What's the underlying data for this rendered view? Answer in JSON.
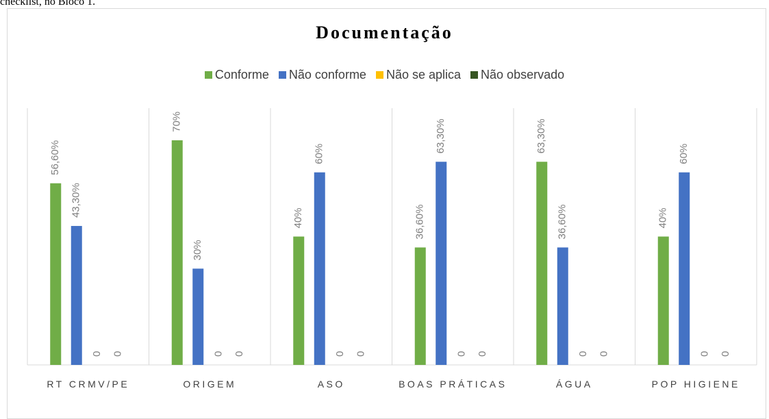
{
  "caption": "checklist, no Bloco 1.",
  "chart_data": {
    "type": "bar",
    "title": "Documentação",
    "categories": [
      "RT CRMV/PE",
      "ORIGEM",
      "ASO",
      "BOAS PRÁTICAS",
      "ÁGUA",
      "POP HIGIENE"
    ],
    "series": [
      {
        "name": "Conforme",
        "color": "#70ad47",
        "values": [
          56.6,
          70,
          40,
          36.6,
          63.3,
          40
        ],
        "value_labels": [
          "56,60%",
          "70%",
          "40%",
          "36,60%",
          "63,30%",
          "40%"
        ]
      },
      {
        "name": "Não conforme",
        "color": "#4472c4",
        "values": [
          43.3,
          30,
          60,
          63.3,
          36.6,
          60
        ],
        "value_labels": [
          "43,30%",
          "30%",
          "60%",
          "63,30%",
          "36,60%",
          "60%"
        ]
      },
      {
        "name": "Não se aplica",
        "color": "#ffc000",
        "values": [
          0,
          0,
          0,
          0,
          0,
          0
        ]
      },
      {
        "name": "Não observado",
        "color": "#375623",
        "values": [
          0,
          0,
          0,
          0,
          0,
          0
        ]
      }
    ],
    "ylim": [
      0,
      80
    ],
    "legend": "top"
  }
}
